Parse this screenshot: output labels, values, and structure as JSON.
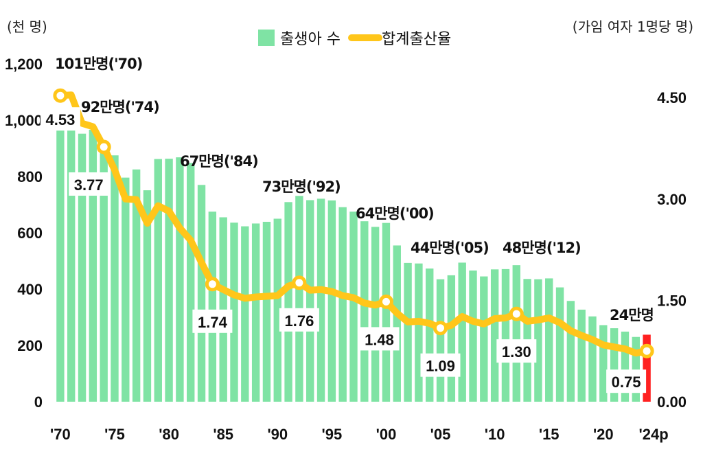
{
  "chart_data": {
    "type": "bar+line",
    "title": "",
    "left_axis_unit": "(천 명)",
    "right_axis_unit": "(가임 여자 1명당 명)",
    "left_ticks": [
      "0",
      "200",
      "400",
      "600",
      "800",
      "1,000",
      "1,200"
    ],
    "left_tick_values": [
      0,
      200,
      400,
      600,
      800,
      1000,
      1200
    ],
    "right_ticks": [
      "0.00",
      "1.50",
      "3.00",
      "4.50"
    ],
    "right_tick_values": [
      0,
      1.5,
      3.0,
      4.5
    ],
    "ylim_left": [
      0,
      1200
    ],
    "ylim_right": [
      0,
      5.0
    ],
    "x_tick_labels": [
      {
        "year": 1970,
        "label": "'70"
      },
      {
        "year": 1975,
        "label": "'75"
      },
      {
        "year": 1980,
        "label": "'80"
      },
      {
        "year": 1985,
        "label": "'85"
      },
      {
        "year": 1990,
        "label": "'90"
      },
      {
        "year": 1995,
        "label": "'95"
      },
      {
        "year": 2000,
        "label": "'00"
      },
      {
        "year": 2005,
        "label": "'05"
      },
      {
        "year": 2010,
        "label": "'10"
      },
      {
        "year": 2015,
        "label": "'15"
      },
      {
        "year": 2020,
        "label": "'20"
      },
      {
        "year": 2024,
        "label": "'24p"
      }
    ],
    "legend": {
      "placement": "top-center",
      "bars_label": "출생아 수",
      "line_label": "합계출산율"
    },
    "colors": {
      "bar": "#7fe3a4",
      "highlight_bar": "#ff2020",
      "line": "#ffc61a",
      "marker_fill": "#ffffff"
    },
    "years": [
      1970,
      1971,
      1972,
      1973,
      1974,
      1975,
      1976,
      1977,
      1978,
      1979,
      1980,
      1981,
      1982,
      1983,
      1984,
      1985,
      1986,
      1987,
      1988,
      1989,
      1990,
      1991,
      1992,
      1993,
      1994,
      1995,
      1996,
      1997,
      1998,
      1999,
      2000,
      2001,
      2002,
      2003,
      2004,
      2005,
      2006,
      2007,
      2008,
      2009,
      2010,
      2011,
      2012,
      2013,
      2014,
      2015,
      2016,
      2017,
      2018,
      2019,
      2020,
      2021,
      2022,
      2023,
      2024
    ],
    "births": [
      1007,
      1024,
      952,
      966,
      922,
      875,
      796,
      825,
      751,
      862,
      863,
      868,
      848,
      770,
      675,
      655,
      636,
      623,
      633,
      639,
      650,
      709,
      731,
      716,
      721,
      715,
      691,
      675,
      641,
      621,
      635,
      555,
      493,
      491,
      473,
      435,
      449,
      494,
      466,
      445,
      470,
      471,
      485,
      436,
      435,
      438,
      406,
      358,
      327,
      303,
      272,
      261,
      249,
      230,
      238
    ],
    "births_highlight_year": 2024,
    "tfr": [
      4.53,
      4.54,
      4.12,
      4.07,
      3.77,
      3.43,
      3.0,
      2.99,
      2.64,
      2.9,
      2.82,
      2.57,
      2.39,
      2.06,
      1.74,
      1.66,
      1.58,
      1.53,
      1.55,
      1.56,
      1.57,
      1.71,
      1.76,
      1.65,
      1.66,
      1.63,
      1.57,
      1.54,
      1.46,
      1.43,
      1.48,
      1.31,
      1.18,
      1.19,
      1.16,
      1.09,
      1.13,
      1.26,
      1.19,
      1.15,
      1.23,
      1.24,
      1.3,
      1.19,
      1.21,
      1.24,
      1.17,
      1.05,
      0.98,
      0.92,
      0.84,
      0.81,
      0.78,
      0.72,
      0.75
    ],
    "tfr_markers": [
      1970,
      1974,
      1984,
      1992,
      2000,
      2005,
      2012,
      2024
    ],
    "tfr_labels": [
      {
        "year": 1970,
        "text": "4.53"
      },
      {
        "year": 1974,
        "text": "3.77"
      },
      {
        "year": 1984,
        "text": "1.74"
      },
      {
        "year": 1992,
        "text": "1.76"
      },
      {
        "year": 2000,
        "text": "1.48"
      },
      {
        "year": 2005,
        "text": "1.09"
      },
      {
        "year": 2012,
        "text": "1.30"
      },
      {
        "year": 2024,
        "text": "0.75"
      }
    ],
    "birth_annotations": [
      {
        "year": 1970,
        "text": "101만명('70)"
      },
      {
        "year": 1974,
        "text": "92만명('74)"
      },
      {
        "year": 1984,
        "text": "67만명('84)"
      },
      {
        "year": 1992,
        "text": "73만명('92)"
      },
      {
        "year": 2000,
        "text": "64만명('00)"
      },
      {
        "year": 2005,
        "text": "44만명('05)"
      },
      {
        "year": 2012,
        "text": "48만명('12)"
      },
      {
        "year": 2024,
        "text": "24만명"
      }
    ]
  }
}
